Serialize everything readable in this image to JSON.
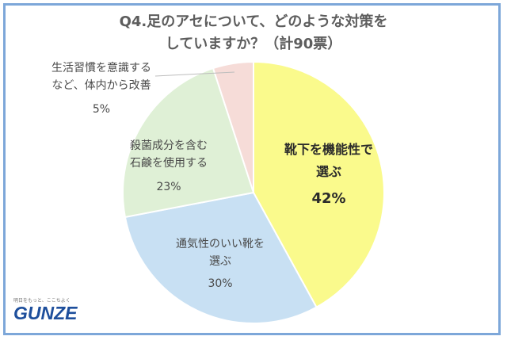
{
  "title": {
    "line1": "Q4.足のアセについて、どのような対策を",
    "line2": "していますか？（計90票）"
  },
  "brand": {
    "tagline": "明日をもっと、ここちよく",
    "logo": "GUNZE"
  },
  "chart_data": {
    "type": "pie",
    "title": "Q4.足のアセについて、どのような対策をしていますか？（計90票）",
    "total_votes": 90,
    "unit": "%",
    "slices": [
      {
        "label_lines": [
          "靴下を機能性で",
          "選ぶ"
        ],
        "value": 42,
        "value_label": "42%",
        "color": "#fafa8c",
        "emphasis": true
      },
      {
        "label_lines": [
          "通気性のいい靴を",
          "選ぶ"
        ],
        "value": 30,
        "value_label": "30%",
        "color": "#c8e0f3",
        "emphasis": false
      },
      {
        "label_lines": [
          "殺菌成分を含む",
          "石鹸を使用する"
        ],
        "value": 23,
        "value_label": "23%",
        "color": "#dff0d6",
        "emphasis": false
      },
      {
        "label_lines": [
          "生活習慣を意識する",
          "など、体内から改善"
        ],
        "value": 5,
        "value_label": "5%",
        "color": "#f6dcd8",
        "emphasis": false
      }
    ]
  }
}
